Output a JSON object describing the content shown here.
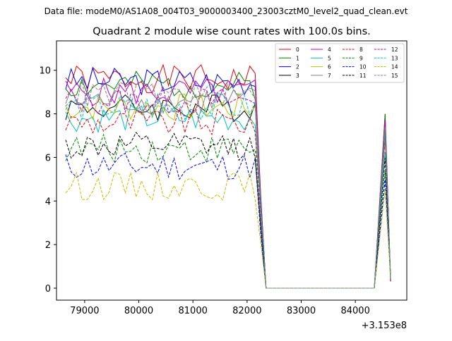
{
  "suptitle": "Data file: modeM0/AS1A08_004T03_9000003400_23003cztM0_level2_quad_clean.evt",
  "chart_data": {
    "type": "line",
    "title": "Quadrant 2 module wise count rates with 100.0s bins.",
    "xlabel": "",
    "ylabel": "",
    "x_offset_label": "+3.153e8",
    "x_offset": 315300000,
    "xlim": [
      78480,
      84950
    ],
    "ylim": [
      -0.55,
      11.35
    ],
    "xticks": [
      79000,
      80000,
      81000,
      82000,
      83000,
      84000
    ],
    "yticks": [
      0,
      2,
      4,
      6,
      8,
      10
    ],
    "grid": false,
    "legend_position": "top-right",
    "legend_columns": 4,
    "x_start": 78650,
    "x_step": 100,
    "series": [
      {
        "name": "0",
        "color": "#e8000b",
        "dash": false,
        "level": 9.6,
        "seed": 1
      },
      {
        "name": "1",
        "color": "#008000",
        "dash": false,
        "level": 9.3,
        "seed": 2
      },
      {
        "name": "2",
        "color": "#0000ff",
        "dash": false,
        "level": 9.5,
        "seed": 3
      },
      {
        "name": "3",
        "color": "#000000",
        "dash": false,
        "level": 8.3,
        "seed": 4
      },
      {
        "name": "4",
        "color": "#bf00bf",
        "dash": false,
        "level": 9.0,
        "seed": 5
      },
      {
        "name": "5",
        "color": "#00bfbf",
        "dash": false,
        "level": 7.8,
        "seed": 6
      },
      {
        "name": "6",
        "color": "#bfbf00",
        "dash": false,
        "level": 8.3,
        "seed": 7
      },
      {
        "name": "7",
        "color": "#808080",
        "dash": false,
        "level": 8.6,
        "seed": 8
      },
      {
        "name": "8",
        "color": "#e8000b",
        "dash": true,
        "level": 7.6,
        "seed": 9
      },
      {
        "name": "9",
        "color": "#008000",
        "dash": true,
        "level": 6.4,
        "seed": 10
      },
      {
        "name": "10",
        "color": "#0000ff",
        "dash": true,
        "level": 5.6,
        "seed": 11
      },
      {
        "name": "11",
        "color": "#000000",
        "dash": true,
        "level": 6.5,
        "seed": 12
      },
      {
        "name": "12",
        "color": "#bf00bf",
        "dash": true,
        "level": 8.6,
        "seed": 13
      },
      {
        "name": "13",
        "color": "#00bfbf",
        "dash": true,
        "level": 8.3,
        "seed": 14
      },
      {
        "name": "14",
        "color": "#bfbf00",
        "dash": true,
        "level": 4.7,
        "seed": 15
      },
      {
        "name": "15",
        "color": "#808080",
        "dash": true,
        "level": 8.9,
        "seed": 16
      }
    ],
    "gap_zero_from": 82350,
    "gap_zero_to": 84350,
    "active_end": 82150,
    "drop_point": 82250,
    "spike_x": 84550,
    "end_x": 84650
  }
}
